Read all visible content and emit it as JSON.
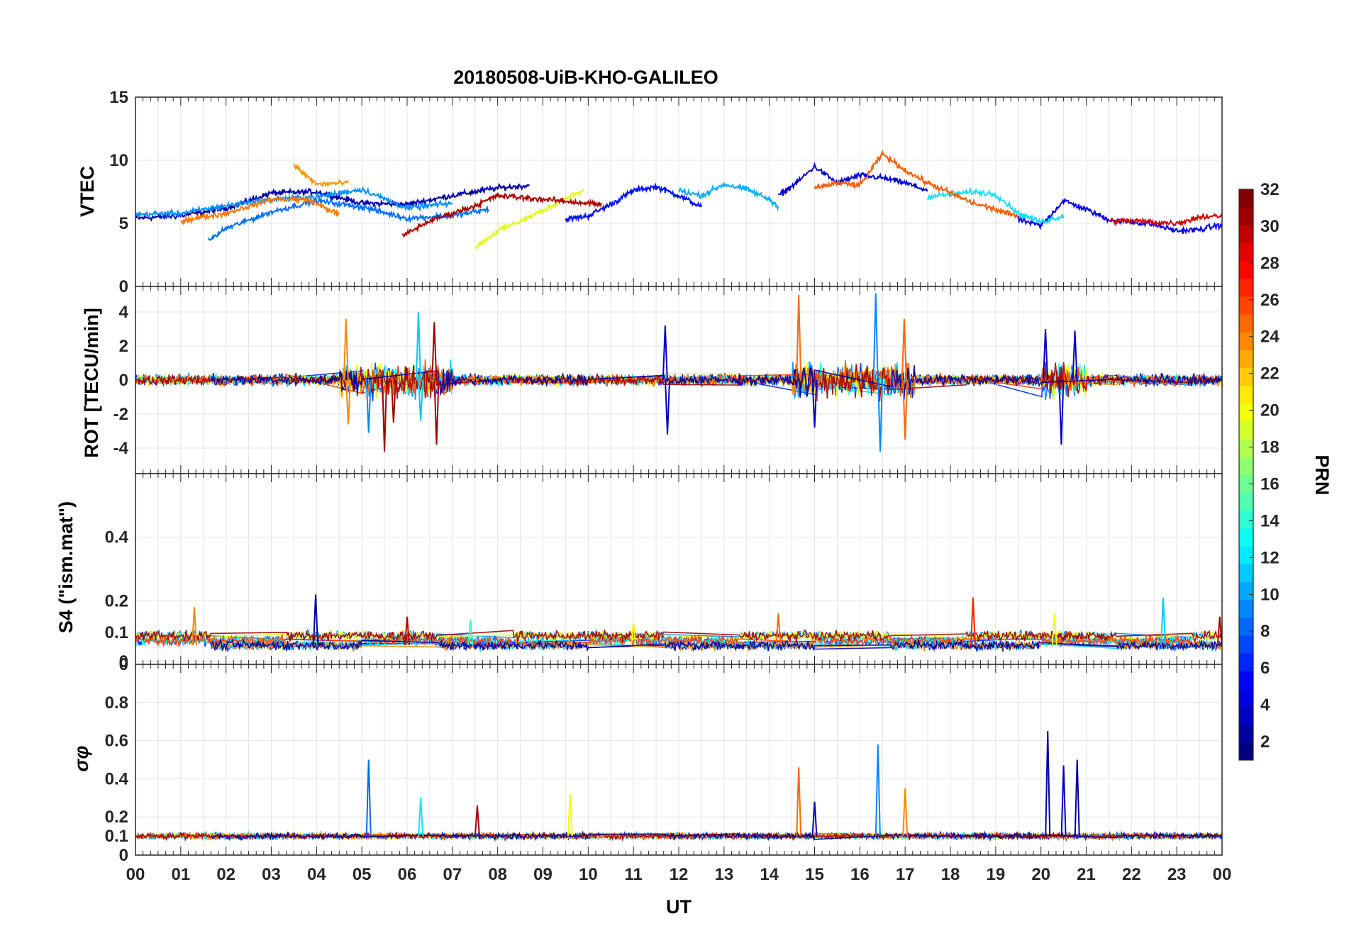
{
  "chart_data": {
    "type": "line",
    "title": "20180508-UiB-KHO-GALILEO",
    "xlabel": "UT",
    "x_ticks": [
      "00",
      "01",
      "02",
      "03",
      "04",
      "05",
      "06",
      "07",
      "08",
      "09",
      "10",
      "11",
      "12",
      "13",
      "14",
      "15",
      "16",
      "17",
      "18",
      "19",
      "20",
      "21",
      "22",
      "23",
      "00"
    ],
    "xlim": [
      0,
      24
    ],
    "grid": true,
    "colorbar": {
      "label": "PRN",
      "range": [
        1,
        32
      ],
      "ticks": [
        "2",
        "4",
        "6",
        "8",
        "10",
        "12",
        "14",
        "16",
        "18",
        "20",
        "22",
        "24",
        "26",
        "28",
        "30",
        "32"
      ],
      "colormap": "jet",
      "placement": "right"
    },
    "panels": [
      {
        "name": "vtec",
        "ylabel": "VTEC",
        "ylim": [
          0,
          15
        ],
        "y_ticks": [
          "0",
          "5",
          "10",
          "15"
        ],
        "series": [
          {
            "prn": 2,
            "color": "#0000ad",
            "x": [
              0,
              1,
              2,
              3,
              4,
              5,
              6,
              7,
              8,
              8.7
            ],
            "y": [
              5.4,
              5.6,
              6.2,
              7.4,
              7.5,
              6.6,
              6.5,
              7.2,
              7.8,
              8
            ]
          },
          {
            "prn": 5,
            "color": "#0010ff",
            "x": [
              9.5,
              10,
              10.5,
              11,
              11.5,
              12,
              12.5
            ],
            "y": [
              5.3,
              5.6,
              6.5,
              7.6,
              7.9,
              7.2,
              6.3
            ]
          },
          {
            "prn": 3,
            "color": "#0000d6",
            "x": [
              14.2,
              14.6,
              15,
              15.5,
              16,
              16.5,
              17,
              17.5
            ],
            "y": [
              7.2,
              8.2,
              9.5,
              8.2,
              8.8,
              8.6,
              8.2,
              7.6
            ]
          },
          {
            "prn": 4,
            "color": "#0000f0",
            "x": [
              19.5,
              20,
              20.5,
              21,
              21.5,
              22,
              22.5,
              23,
              23.5,
              24
            ],
            "y": [
              5.3,
              4.8,
              6.8,
              6.1,
              5.3,
              5.1,
              4.9,
              4.4,
              4.5,
              4.9
            ]
          },
          {
            "prn": 8,
            "color": "#0070ff",
            "x": [
              1.6,
              2,
              3,
              4,
              5,
              6,
              7,
              7.8
            ],
            "y": [
              3.6,
              4.6,
              5.9,
              6.8,
              6.3,
              5.4,
              5.6,
              6.1
            ]
          },
          {
            "prn": 9,
            "color": "#0090ff",
            "x": [
              0,
              1,
              2,
              3,
              4,
              5,
              6,
              7
            ],
            "y": [
              5.7,
              5.8,
              6.4,
              6.9,
              7.1,
              7.7,
              6.2,
              6.6
            ]
          },
          {
            "prn": 10,
            "color": "#00b0ff",
            "x": [
              12,
              12.5,
              13,
              13.5,
              14,
              14.2
            ],
            "y": [
              7.6,
              7.2,
              8.1,
              7.7,
              6.9,
              6.3
            ]
          },
          {
            "prn": 12,
            "color": "#10e0ff",
            "x": [
              17.5,
              18,
              18.5,
              19,
              19.5,
              20,
              20.5
            ],
            "y": [
              7.1,
              7.3,
              7.5,
              7.3,
              5.8,
              5.1,
              5.6
            ]
          },
          {
            "prn": 20,
            "color": "#e0ff10",
            "x": [
              7.5,
              8,
              8.5,
              9,
              9.5,
              9.9
            ],
            "y": [
              3.1,
              4.4,
              5.2,
              6,
              7,
              7.6
            ]
          },
          {
            "prn": 23,
            "color": "#ff9400",
            "x": [
              3.5,
              4,
              4.7
            ],
            "y": [
              9.6,
              8.1,
              8.2
            ]
          },
          {
            "prn": 25,
            "color": "#ff5c00",
            "x": [
              15,
              15.5,
              16,
              16.5,
              17,
              17.5,
              18,
              18.5,
              19,
              19.5
            ],
            "y": [
              7.8,
              8.2,
              8,
              10.5,
              9.2,
              8.2,
              7.4,
              6.6,
              6.1,
              5.5
            ]
          },
          {
            "prn": 24,
            "color": "#ff7800",
            "x": [
              1,
              2,
              3,
              3.8,
              4.5
            ],
            "y": [
              5.2,
              5.8,
              6.9,
              6.9,
              5.7
            ]
          },
          {
            "prn": 31,
            "color": "#b00000",
            "x": [
              5.9,
              6.5,
              7.5,
              8,
              9,
              10.3
            ],
            "y": [
              4,
              5.2,
              6.4,
              7.2,
              6.9,
              6.5
            ]
          },
          {
            "prn": 30,
            "color": "#d40000",
            "x": [
              21.5,
              22,
              23,
              23.5,
              24
            ],
            "y": [
              5.2,
              5.2,
              5,
              5.5,
              5.6
            ]
          }
        ]
      },
      {
        "name": "rot",
        "ylabel": "ROT [TECU/min]",
        "ylim": [
          -5.5,
          5.5
        ],
        "y_ticks": [
          "-4",
          "-2",
          "0",
          "2",
          "4"
        ],
        "spikes": [
          {
            "prn": 24,
            "x": 4.65,
            "y": 3.6
          },
          {
            "prn": 24,
            "x": 4.7,
            "y": -2.6
          },
          {
            "prn": 9,
            "x": 5.15,
            "y": -3.1
          },
          {
            "prn": 31,
            "x": 5.5,
            "y": -4.2
          },
          {
            "prn": 31,
            "x": 5.7,
            "y": -2.5
          },
          {
            "prn": 11,
            "x": 6.25,
            "y": 4.0
          },
          {
            "prn": 11,
            "x": 6.3,
            "y": -2.4
          },
          {
            "prn": 31,
            "x": 6.6,
            "y": 3.4
          },
          {
            "prn": 31,
            "x": 6.65,
            "y": -3.8
          },
          {
            "prn": 3,
            "x": 11.7,
            "y": 3.2
          },
          {
            "prn": 3,
            "x": 11.75,
            "y": -3.2
          },
          {
            "prn": 25,
            "x": 14.65,
            "y": 5.0
          },
          {
            "prn": 3,
            "x": 15.0,
            "y": -2.8
          },
          {
            "prn": 9,
            "x": 16.35,
            "y": 5.1
          },
          {
            "prn": 9,
            "x": 16.45,
            "y": -4.2
          },
          {
            "prn": 25,
            "x": 16.98,
            "y": 3.6
          },
          {
            "prn": 25,
            "x": 17.0,
            "y": -3.5
          },
          {
            "prn": 3,
            "x": 20.1,
            "y": 3.0
          },
          {
            "prn": 3,
            "x": 20.45,
            "y": -3.8
          },
          {
            "prn": 3,
            "x": 20.75,
            "y": 2.9
          }
        ]
      },
      {
        "name": "s4",
        "ylabel": "S4 (\"ism.mat\")",
        "ylim": [
          0,
          0.6
        ],
        "y_ticks": [
          "0",
          "0",
          "0.1",
          "0.2",
          "0.4"
        ],
        "spikes": [
          {
            "prn": 24,
            "x": 1.3,
            "y": 0.18
          },
          {
            "prn": 2,
            "x": 3.98,
            "y": 0.22
          },
          {
            "prn": 30,
            "x": 6.0,
            "y": 0.15
          },
          {
            "prn": 14,
            "x": 7.4,
            "y": 0.14
          },
          {
            "prn": 21,
            "x": 11.0,
            "y": 0.13
          },
          {
            "prn": 25,
            "x": 14.2,
            "y": 0.16
          },
          {
            "prn": 27,
            "x": 18.5,
            "y": 0.21
          },
          {
            "prn": 20,
            "x": 20.3,
            "y": 0.16
          },
          {
            "prn": 11,
            "x": 22.7,
            "y": 0.21
          },
          {
            "prn": 31,
            "x": 23.95,
            "y": 0.15
          }
        ]
      },
      {
        "name": "sigma-phi",
        "ylabel": "σφ",
        "ylim": [
          0,
          1
        ],
        "y_ticks": [
          "0",
          "0.1",
          "0.2",
          "0.4",
          "0.6",
          "0.8"
        ],
        "spikes": [
          {
            "prn": 8,
            "x": 5.15,
            "y": 0.5
          },
          {
            "prn": 12,
            "x": 6.3,
            "y": 0.3
          },
          {
            "prn": 31,
            "x": 7.55,
            "y": 0.26
          },
          {
            "prn": 20,
            "x": 9.6,
            "y": 0.32
          },
          {
            "prn": 25,
            "x": 14.65,
            "y": 0.46
          },
          {
            "prn": 3,
            "x": 15.0,
            "y": 0.28
          },
          {
            "prn": 9,
            "x": 16.4,
            "y": 0.58
          },
          {
            "prn": 24,
            "x": 17.0,
            "y": 0.35
          },
          {
            "prn": 2,
            "x": 20.15,
            "y": 0.65
          },
          {
            "prn": 3,
            "x": 20.5,
            "y": 0.47
          },
          {
            "prn": 2,
            "x": 20.8,
            "y": 0.5
          }
        ]
      }
    ]
  }
}
